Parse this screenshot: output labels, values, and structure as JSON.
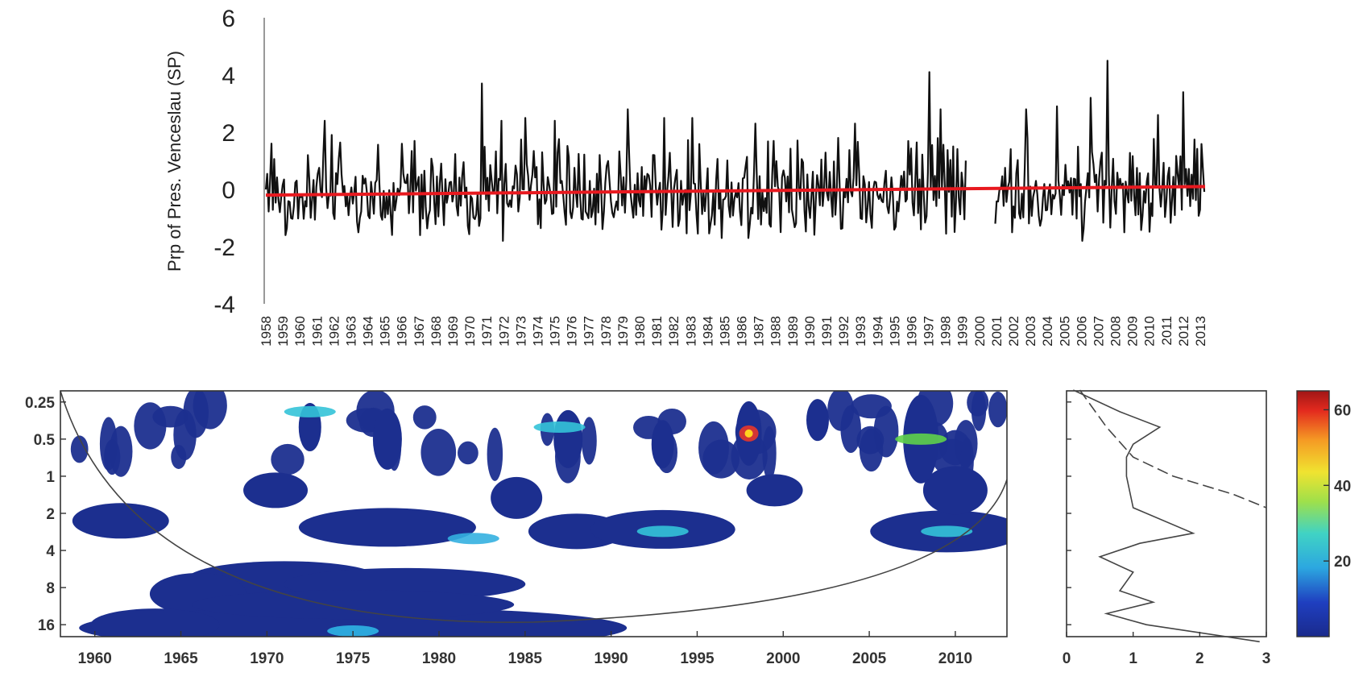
{
  "chart_data": [
    {
      "type": "line",
      "title": "",
      "xlabel": "",
      "ylabel": "Prp of Pres. Venceslau (SP)",
      "ylim": [
        -4,
        6
      ],
      "y_ticks": [
        "6",
        "4",
        "2",
        "0",
        "-2",
        "-4"
      ],
      "x_tick_labels": [
        "1958",
        "1959",
        "1960",
        "1961",
        "1962",
        "1963",
        "1964",
        "1965",
        "1966",
        "1967",
        "1968",
        "1969",
        "1970",
        "1971",
        "1972",
        "1973",
        "1974",
        "1975",
        "1976",
        "1977",
        "1978",
        "1979",
        "1980",
        "1981",
        "1982",
        "1983",
        "1984",
        "1985",
        "1986",
        "1987",
        "1988",
        "1989",
        "1990",
        "1991",
        "1992",
        "1993",
        "1994",
        "1995",
        "1996",
        "1997",
        "1998",
        "1999",
        "2000",
        "2001",
        "2002",
        "2003",
        "2004",
        "2005",
        "2006",
        "2007",
        "2008",
        "2009",
        "2010",
        "2011",
        "2012",
        "2013"
      ],
      "grid": false,
      "series": [
        {
          "role": "monthly standardized precipitation anomaly",
          "color": "#111111",
          "peaks": [
            {
              "x": 1958.3,
              "y": 1.6
            },
            {
              "x": 1961.5,
              "y": 2.4
            },
            {
              "x": 1961.9,
              "y": 1.9
            },
            {
              "x": 1970.8,
              "y": 3.7
            },
            {
              "x": 1972.0,
              "y": 2.4
            },
            {
              "x": 1973.4,
              "y": 2.5
            },
            {
              "x": 1975.2,
              "y": 2.4
            },
            {
              "x": 1979.5,
              "y": 2.8
            },
            {
              "x": 1981.7,
              "y": 2.5
            },
            {
              "x": 1983.3,
              "y": 2.5
            },
            {
              "x": 1987.1,
              "y": 2.3
            },
            {
              "x": 1993.0,
              "y": 2.3
            },
            {
              "x": 1997.4,
              "y": 4.1
            },
            {
              "x": 1998.1,
              "y": 2.8
            },
            {
              "x": 2003.2,
              "y": 2.8
            },
            {
              "x": 2005.0,
              "y": 2.9
            },
            {
              "x": 2007.0,
              "y": 3.2
            },
            {
              "x": 2008.0,
              "y": 4.5
            },
            {
              "x": 2011.0,
              "y": 2.6
            },
            {
              "x": 2012.5,
              "y": 3.4
            }
          ],
          "lows": [
            {
              "x": 1959.2,
              "y": -1.6
            },
            {
              "x": 1963.5,
              "y": -1.5
            },
            {
              "x": 1967.2,
              "y": -1.6
            },
            {
              "x": 1972.1,
              "y": -1.8
            },
            {
              "x": 1985.1,
              "y": -1.7
            },
            {
              "x": 1986.7,
              "y": -1.7
            },
            {
              "x": 2002.3,
              "y": -1.5
            },
            {
              "x": 2006.5,
              "y": -1.8
            },
            {
              "x": 2009.0,
              "y": -1.5
            }
          ],
          "gap": [
            1999.6,
            2001.3
          ]
        },
        {
          "role": "linear trend",
          "color": "#e8191f",
          "x": [
            1958.0,
            2013.8
          ],
          "y": [
            -0.2,
            0.1
          ]
        }
      ]
    },
    {
      "type": "heatmap",
      "title": "",
      "xlabel": "",
      "ylabel": "",
      "x_ticks": [
        "1960",
        "1965",
        "1970",
        "1975",
        "1980",
        "1985",
        "1990",
        "1995",
        "2000",
        "2005",
        "2010"
      ],
      "y_ticks": [
        "0.25",
        "0.5",
        "1",
        "2",
        "4",
        "8",
        "16"
      ],
      "xlim": [
        1958,
        2013
      ],
      "y_scale": "log2 period (years), increasing downward",
      "colormap": "jet",
      "hotspots": [
        {
          "x": 1998.0,
          "period": 0.45,
          "power": 55
        },
        {
          "x": 2008.0,
          "period": 0.5,
          "power": 30
        },
        {
          "x": 1993.0,
          "period": 2.8,
          "power": 25
        },
        {
          "x": 2009.5,
          "period": 2.8,
          "power": 25
        },
        {
          "x": 1982.0,
          "period": 3.2,
          "power": 22
        },
        {
          "x": 1975.0,
          "period": 18.0,
          "power": 20
        },
        {
          "x": 1987.0,
          "period": 0.4,
          "power": 25
        },
        {
          "x": 1972.5,
          "period": 0.3,
          "power": 25
        }
      ],
      "cone_of_influence": true
    },
    {
      "type": "line",
      "title": "",
      "xlabel": "",
      "ylabel": "",
      "x_ticks": [
        "0",
        "1",
        "2",
        "3"
      ],
      "xlim": [
        0,
        3
      ],
      "series": [
        {
          "role": "global wavelet power",
          "style": "solid",
          "points": [
            {
              "period": 0.2,
              "power": 0.1
            },
            {
              "period": 0.3,
              "power": 0.8
            },
            {
              "period": 0.4,
              "power": 1.4
            },
            {
              "period": 0.55,
              "power": 1.0
            },
            {
              "period": 0.7,
              "power": 0.9
            },
            {
              "period": 1.0,
              "power": 0.9
            },
            {
              "period": 1.8,
              "power": 1.0
            },
            {
              "period": 2.9,
              "power": 1.9
            },
            {
              "period": 3.5,
              "power": 1.1
            },
            {
              "period": 4.5,
              "power": 0.5
            },
            {
              "period": 6.0,
              "power": 1.0
            },
            {
              "period": 8.5,
              "power": 0.8
            },
            {
              "period": 10.5,
              "power": 1.3
            },
            {
              "period": 13.0,
              "power": 0.6
            },
            {
              "period": 16.0,
              "power": 1.2
            },
            {
              "period": 22.0,
              "power": 2.9
            }
          ]
        },
        {
          "role": "significance level",
          "style": "dashed",
          "points": [
            {
              "period": 0.2,
              "power": 0.2
            },
            {
              "period": 0.4,
              "power": 0.6
            },
            {
              "period": 0.7,
              "power": 1.0
            },
            {
              "period": 1.0,
              "power": 1.6
            },
            {
              "period": 1.4,
              "power": 2.5
            },
            {
              "period": 1.8,
              "power": 3.0
            }
          ]
        }
      ]
    },
    {
      "type": "colorbar",
      "ticks": [
        "60",
        "40",
        "20"
      ],
      "range": [
        0,
        65
      ]
    }
  ]
}
